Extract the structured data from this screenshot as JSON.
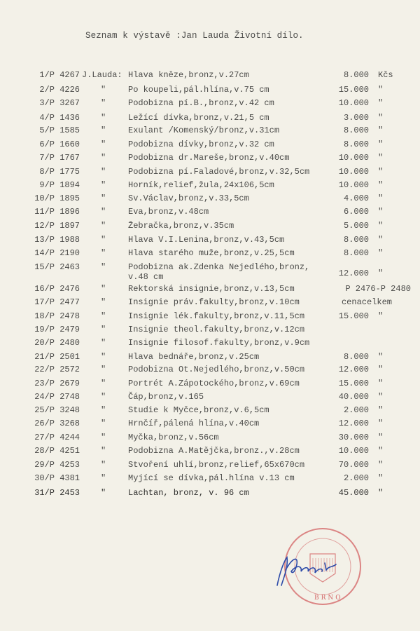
{
  "document": {
    "title": "Seznam k výstavě :Jan Lauda Životní dílo.",
    "author_prefix": "J.Lauda:",
    "ditto_mark": "\"",
    "currency": "Kčs",
    "items": [
      {
        "num": "1/P 4267",
        "desc": "Hlava kněze,bronz,v.27cm",
        "price": "8.000",
        "unit": "Kčs"
      },
      {
        "num": "2/P 4226",
        "desc": "Po koupeli,pál.hlína,v.75 cm",
        "price": "15.000",
        "unit": "\""
      },
      {
        "num": "3/P 3267",
        "desc": "Podobizna pí.B.,bronz,v.42 cm",
        "price": "10.000",
        "unit": "\""
      },
      {
        "num": "4/P 1436",
        "desc": "Ležící dívka,bronz,v.21,5 cm",
        "price": "3.000",
        "unit": "\""
      },
      {
        "num": "5/P 1585",
        "desc": "Exulant /Komenský/bronz,v.31cm",
        "price": "8.000",
        "unit": "\""
      },
      {
        "num": "6/P 1660",
        "desc": "Podobizna dívky,bronz,v.32 cm",
        "price": "8.000",
        "unit": "\""
      },
      {
        "num": "7/P 1767",
        "desc": "Podobizna dr.Mareše,bronz,v.40cm",
        "price": "10.000",
        "unit": "\""
      },
      {
        "num": "8/P 1775",
        "desc": "Podobizna pí.Faladové,bronz,v.32,5cm",
        "price": "10.000",
        "unit": "\""
      },
      {
        "num": "9/P 1894",
        "desc": "Horník,relief,žula,24x106,5cm",
        "price": "10.000",
        "unit": "\""
      },
      {
        "num": "10/P 1895",
        "desc": "Sv.Václav,bronz,v.33,5cm",
        "price": "4.000",
        "unit": "\""
      },
      {
        "num": "11/P 1896",
        "desc": "Eva,bronz,v.48cm",
        "price": "6.000",
        "unit": "\""
      },
      {
        "num": "12/P 1897",
        "desc": "Žebračka,bronz,v.35cm",
        "price": "5.000",
        "unit": "\""
      },
      {
        "num": "13/P 1988",
        "desc": "Hlava V.I.Lenina,bronz,v.43,5cm",
        "price": "8.000",
        "unit": "\""
      },
      {
        "num": "14/P 2190",
        "desc": "Hlava starého muže,bronz,v.25,5cm",
        "price": "8.000",
        "unit": "\""
      },
      {
        "num": "15/P 2463",
        "desc": "Podobizna ak.Zdenka Nejedlého,bronz,",
        "desc2": "v.48 cm",
        "price": "12.000",
        "unit": "\""
      },
      {
        "num": "16/P 2476",
        "desc": "Rektorská insignie,bronz,v.13,5cm",
        "price": "P 2476-P 2480",
        "unit": ""
      },
      {
        "num": "17/P 2477",
        "desc": "Insignie práv.fakulty,bronz,v.10cm",
        "price": "cenacelkem",
        "unit": ""
      },
      {
        "num": "18/P 2478",
        "desc": "Insignie lék.fakulty,bronz,v.11,5cm",
        "price": "15.000",
        "unit": "\""
      },
      {
        "num": "19/P 2479",
        "desc": "Insignie theol.fakulty,bronz,v.12cm",
        "price": "",
        "unit": ""
      },
      {
        "num": "20/P 2480",
        "desc": "Insignie filosof.fakulty,bronz,v.9cm",
        "price": "",
        "unit": ""
      },
      {
        "num": "21/P 2501",
        "desc": "Hlava bednáře,bronz,v.25cm",
        "price": "8.000",
        "unit": "\""
      },
      {
        "num": "22/P 2572",
        "desc": "Podobizna Ot.Nejedlého,bronz,v.50cm",
        "price": "12.000",
        "unit": "\""
      },
      {
        "num": "23/P 2679",
        "desc": "Portrét A.Zápotockého,bronz,v.69cm",
        "price": "15.000",
        "unit": "\""
      },
      {
        "num": "24/P 2748",
        "desc": "Čáp,bronz,v.165",
        "price": "40.000",
        "unit": "\""
      },
      {
        "num": "25/P 3248",
        "desc": "Studie k Myčce,bronz,v.6,5cm",
        "price": "2.000",
        "unit": "\""
      },
      {
        "num": "26/P 3268",
        "desc": "Hrnčíř,pálená hlína,v.40cm",
        "price": "12.000",
        "unit": "\""
      },
      {
        "num": "27/P 4244",
        "desc": "Myčka,bronz,v.56cm",
        "price": "30.000",
        "unit": "\""
      },
      {
        "num": "28/P 4251",
        "desc": "Podobizna A.Matějčka,bronz.,v.28cm",
        "price": "10.000",
        "unit": "\""
      },
      {
        "num": "29/P 4253",
        "desc": "Stvoření uhlí,bronz,relief,65x670cm",
        "price": "70.000",
        "unit": "\""
      },
      {
        "num": "30/P 4381",
        "desc": "Myjící se dívka,pál.hlína v.13 cm",
        "price": "2.000",
        "unit": "\""
      },
      {
        "num": "31/P 2453",
        "desc": "Lachtan, bronz, v. 96 cm",
        "price": "45.000",
        "unit": "\""
      }
    ]
  },
  "stamp": {
    "text": "DŮM UMĚNÍ MĚSTA ... BRNO",
    "color": "#d46a6a"
  },
  "signature": {
    "color": "#2c4aa8"
  }
}
